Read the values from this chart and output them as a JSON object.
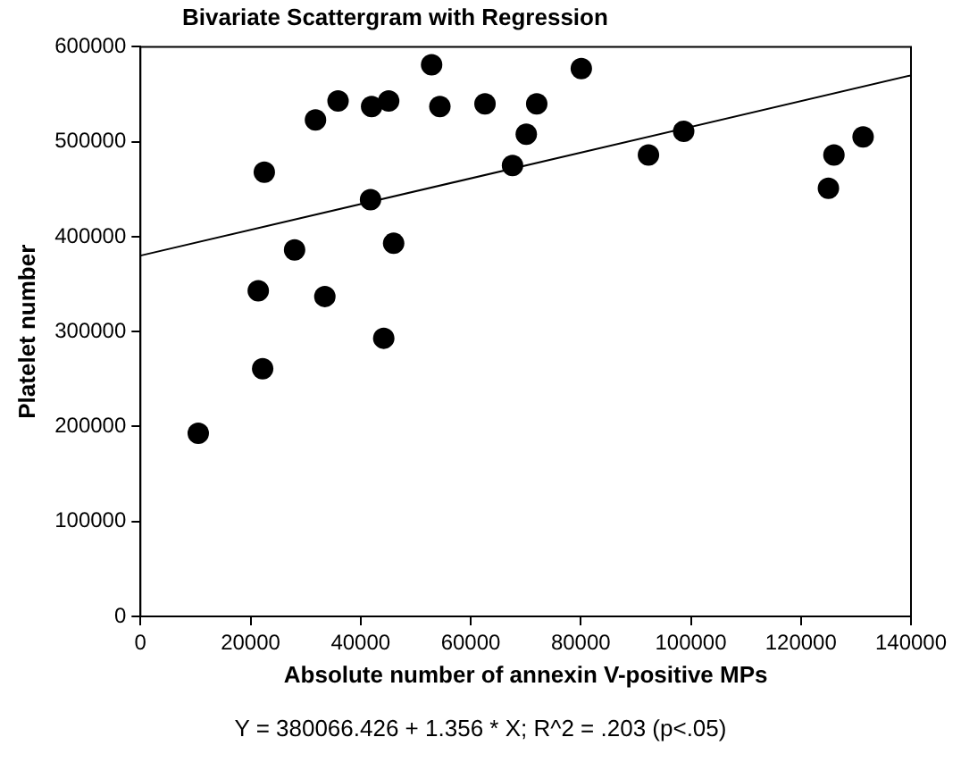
{
  "chart_data": {
    "type": "scatter",
    "title": "Bivariate Scattergram with Regression",
    "xlabel": "Absolute number of annexin V-positive MPs",
    "ylabel": "Platelet number",
    "xlim": [
      0,
      140000
    ],
    "xticks": [
      0,
      20000,
      40000,
      60000,
      80000,
      100000,
      120000,
      140000
    ],
    "ylim": [
      0,
      600000
    ],
    "yticks": [
      0,
      100000,
      200000,
      300000,
      400000,
      500000,
      600000
    ],
    "grid": false,
    "legend": false,
    "marker": "circle",
    "series": [
      {
        "color": "#000000",
        "x": [
          10500,
          21400,
          22200,
          22500,
          28000,
          31800,
          33500,
          35900,
          41800,
          42000,
          44200,
          45100,
          46000,
          52900,
          54400,
          62600,
          67600,
          70100,
          72000,
          80100,
          92300,
          98700,
          125000,
          126000,
          131300
        ],
        "values": [
          193000,
          343000,
          261000,
          468000,
          386000,
          523000,
          337000,
          543000,
          439000,
          537000,
          293000,
          543000,
          393000,
          581000,
          537000,
          540000,
          475000,
          508000,
          540000,
          577000,
          486000,
          511000,
          451000,
          486000,
          505000
        ]
      },
      {
        "type": "line",
        "color": "#000000",
        "marker": "none",
        "x": [
          0,
          140000
        ],
        "values": [
          380066,
          569906
        ]
      }
    ],
    "annotations": [
      "Y = 380066.426 + 1.356 * X; R^2 = .203 (p<.05)"
    ]
  }
}
